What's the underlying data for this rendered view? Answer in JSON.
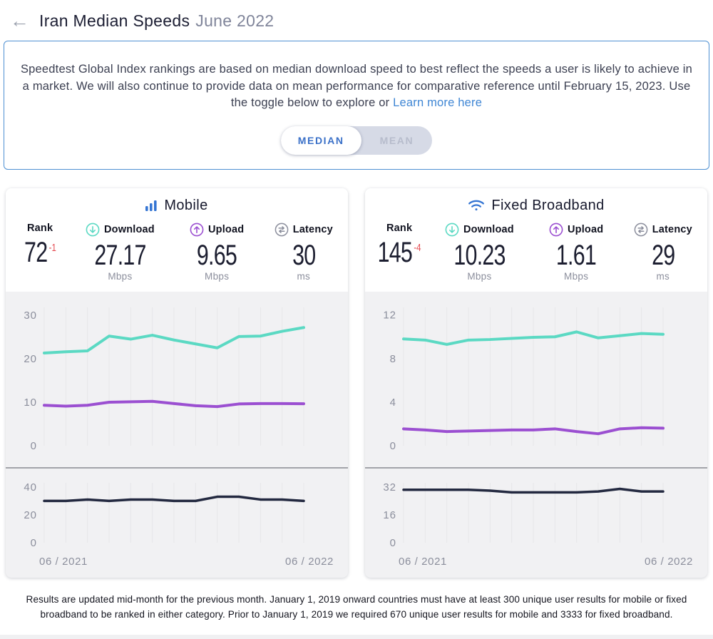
{
  "colors": {
    "accent_blue": "#3a70c8",
    "icon_blue": "#3575d3",
    "download_teal": "#5bd9c3",
    "upload_purple": "#9b4fd1",
    "latency_navy": "#232940",
    "rank_change_red": "#e4484f",
    "link_blue": "#3f86d4",
    "notice_border": "#4e90d2",
    "card_bg": "#f1f1f3"
  },
  "header": {
    "back": "←",
    "title": "Iran Median Speeds",
    "subtitle": "June 2022"
  },
  "notice": {
    "body": "Speedtest Global Index rankings are based on median download speed to best reflect the speeds a user is likely to achieve in a market. We will also continue to provide data on mean performance for comparative reference until February 15, 2023. ",
    "toggle_prompt": "Use the toggle below to explore or ",
    "link": "Learn more here",
    "toggle": {
      "median": "MEDIAN",
      "mean": "MEAN"
    }
  },
  "cards": [
    {
      "title": "Mobile",
      "icon": "mobile-bars-icon",
      "stats": {
        "rank": {
          "label": "Rank",
          "value": "72",
          "change": "-1"
        },
        "download": {
          "label": "Download",
          "value": "27.17",
          "unit": "Mbps"
        },
        "upload": {
          "label": "Upload",
          "value": "9.65",
          "unit": "Mbps"
        },
        "latency": {
          "label": "Latency",
          "value": "30",
          "unit": "ms"
        }
      },
      "xaxis": {
        "start": "06 / 2021",
        "end": "06 / 2022"
      }
    },
    {
      "title": "Fixed Broadband",
      "icon": "wifi-icon",
      "stats": {
        "rank": {
          "label": "Rank",
          "value": "145",
          "change": "-4"
        },
        "download": {
          "label": "Download",
          "value": "10.23",
          "unit": "Mbps"
        },
        "upload": {
          "label": "Upload",
          "value": "1.61",
          "unit": "Mbps"
        },
        "latency": {
          "label": "Latency",
          "value": "29",
          "unit": "ms"
        }
      },
      "xaxis": {
        "start": "06 / 2021",
        "end": "06 / 2022"
      }
    }
  ],
  "chart_data": [
    {
      "id": "mobile-speed",
      "type": "line",
      "title": "Mobile median speeds (Mbps)",
      "x": [
        "06/2021",
        "07/2021",
        "08/2021",
        "09/2021",
        "10/2021",
        "11/2021",
        "12/2021",
        "01/2022",
        "02/2022",
        "03/2022",
        "04/2022",
        "05/2022",
        "06/2022"
      ],
      "yticks": [
        0,
        10,
        20,
        30
      ],
      "ylim": [
        0,
        31.8
      ],
      "ymax": 31.8,
      "grid": "vertical",
      "series": [
        {
          "name": "download",
          "color": "#5bd9c3",
          "width": 4,
          "values": [
            21.3,
            21.6,
            21.8,
            25.2,
            24.5,
            25.4,
            24.3,
            23.4,
            22.5,
            25.1,
            25.2,
            26.3,
            27.17
          ]
        },
        {
          "name": "upload",
          "color": "#9b4fd1",
          "width": 4,
          "values": [
            9.3,
            9.1,
            9.3,
            10.0,
            10.1,
            10.2,
            9.7,
            9.2,
            9.0,
            9.6,
            9.7,
            9.7,
            9.65
          ]
        }
      ]
    },
    {
      "id": "mobile-latency",
      "type": "line",
      "title": "Mobile median latency (ms)",
      "x": [
        "06/2021",
        "07/2021",
        "08/2021",
        "09/2021",
        "10/2021",
        "11/2021",
        "12/2021",
        "01/2022",
        "02/2022",
        "03/2022",
        "04/2022",
        "05/2022",
        "06/2022"
      ],
      "yticks": [
        0,
        20,
        40
      ],
      "ylim": [
        0,
        43
      ],
      "ymax": 43,
      "grid": "vertical",
      "series": [
        {
          "name": "latency",
          "color": "#232940",
          "width": 3.5,
          "values": [
            30,
            30,
            31,
            30,
            31,
            31,
            30,
            30,
            33,
            33,
            31,
            31,
            30
          ]
        }
      ]
    },
    {
      "id": "fixed-speed",
      "type": "line",
      "title": "Fixed broadband median speeds (Mbps)",
      "x": [
        "06/2021",
        "07/2021",
        "08/2021",
        "09/2021",
        "10/2021",
        "11/2021",
        "12/2021",
        "01/2022",
        "02/2022",
        "03/2022",
        "04/2022",
        "05/2022",
        "06/2022"
      ],
      "yticks": [
        0,
        4,
        8,
        12
      ],
      "ylim": [
        0,
        12.7
      ],
      "ymax": 12.7,
      "grid": "vertical",
      "series": [
        {
          "name": "download",
          "color": "#5bd9c3",
          "width": 4,
          "values": [
            9.8,
            9.7,
            9.3,
            9.7,
            9.75,
            9.85,
            9.95,
            10.0,
            10.45,
            9.9,
            10.1,
            10.3,
            10.23
          ]
        },
        {
          "name": "upload",
          "color": "#9b4fd1",
          "width": 4,
          "values": [
            1.55,
            1.45,
            1.3,
            1.35,
            1.4,
            1.45,
            1.45,
            1.55,
            1.3,
            1.1,
            1.55,
            1.65,
            1.61
          ]
        }
      ]
    },
    {
      "id": "fixed-latency",
      "type": "line",
      "title": "Fixed broadband median latency (ms)",
      "x": [
        "06/2021",
        "07/2021",
        "08/2021",
        "09/2021",
        "10/2021",
        "11/2021",
        "12/2021",
        "01/2022",
        "02/2022",
        "03/2022",
        "04/2022",
        "05/2022",
        "06/2022"
      ],
      "yticks": [
        0,
        16,
        32
      ],
      "ylim": [
        0,
        34.5
      ],
      "ymax": 34.5,
      "grid": "vertical",
      "series": [
        {
          "name": "latency",
          "color": "#232940",
          "width": 3.5,
          "values": [
            30.5,
            30.5,
            30.5,
            30.5,
            30,
            29,
            29,
            29,
            29,
            29.5,
            31,
            29.5,
            29.5
          ]
        }
      ]
    }
  ],
  "footer": "Results are updated mid-month for the previous month. January 1, 2019 onward countries must have at least 300 unique user results for mobile or fixed broadband to be ranked in either category. Prior to January 1, 2019 we required 670 unique user results for mobile and 3333 for fixed broadband."
}
